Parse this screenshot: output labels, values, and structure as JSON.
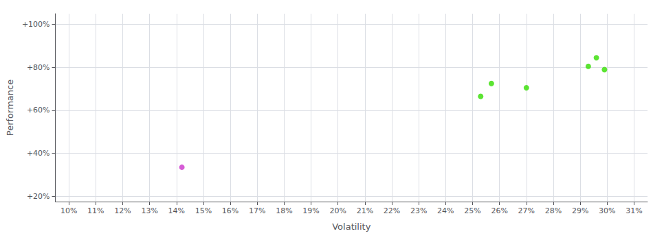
{
  "chart_data": {
    "type": "scatter",
    "xlabel": "Volatility",
    "ylabel": "Performance",
    "series": [
      {
        "color": "#33dd00",
        "x": [
          0.253,
          0.257,
          0.27,
          0.293,
          0.296,
          0.299
        ],
        "values": [
          0.665,
          0.725,
          0.705,
          0.805,
          0.845,
          0.79
        ]
      },
      {
        "color": "#cc33cc",
        "x": [
          0.142
        ],
        "values": [
          0.335
        ]
      }
    ],
    "xlim": [
      0.095,
      0.315
    ],
    "ylim": [
      0.175,
      1.05
    ],
    "xticks": [
      {
        "value": 0.1,
        "label": "10%"
      },
      {
        "value": 0.11,
        "label": "11%"
      },
      {
        "value": 0.12,
        "label": "12%"
      },
      {
        "value": 0.13,
        "label": "13%"
      },
      {
        "value": 0.14,
        "label": "14%"
      },
      {
        "value": 0.15,
        "label": "15%"
      },
      {
        "value": 0.16,
        "label": "16%"
      },
      {
        "value": 0.17,
        "label": "17%"
      },
      {
        "value": 0.18,
        "label": "18%"
      },
      {
        "value": 0.19,
        "label": "19%"
      },
      {
        "value": 0.2,
        "label": "20%"
      },
      {
        "value": 0.21,
        "label": "21%"
      },
      {
        "value": 0.22,
        "label": "22%"
      },
      {
        "value": 0.23,
        "label": "23%"
      },
      {
        "value": 0.24,
        "label": "24%"
      },
      {
        "value": 0.25,
        "label": "25%"
      },
      {
        "value": 0.26,
        "label": "26%"
      },
      {
        "value": 0.27,
        "label": "27%"
      },
      {
        "value": 0.28,
        "label": "28%"
      },
      {
        "value": 0.29,
        "label": "29%"
      },
      {
        "value": 0.3,
        "label": "30%"
      },
      {
        "value": 0.31,
        "label": "31%"
      }
    ],
    "yticks": [
      {
        "value": 0.2,
        "label": "+20%"
      },
      {
        "value": 0.4,
        "label": "+40%"
      },
      {
        "value": 0.6,
        "label": "+60%"
      },
      {
        "value": 0.8,
        "label": "+80%"
      },
      {
        "value": 1.0,
        "label": "+100%"
      }
    ],
    "grid": true
  }
}
